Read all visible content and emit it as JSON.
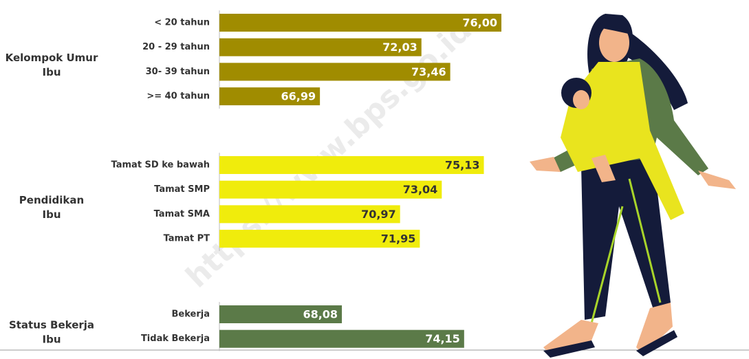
{
  "chart_data": {
    "type": "bar",
    "orientation": "horizontal",
    "watermark": "https://www.bps.go.id",
    "xlim": [
      62,
      76
    ],
    "groups": [
      {
        "name": "Kelompok Umur Ibu",
        "color": "#a08c00",
        "categories": [
          "< 20 tahun",
          "20 - 29 tahun",
          "30- 39 tahun",
          ">= 40 tahun"
        ],
        "values": [
          76.0,
          72.03,
          73.46,
          66.99
        ],
        "value_labels": [
          "76,00",
          "72,03",
          "73,46",
          "66,99"
        ]
      },
      {
        "name": "Pendidikan Ibu",
        "color": "#f0ec0c",
        "categories": [
          "Tamat SD ke bawah",
          "Tamat SMP",
          "Tamat SMA",
          "Tamat PT"
        ],
        "values": [
          75.13,
          73.04,
          70.97,
          71.95
        ],
        "value_labels": [
          "75,13",
          "73,04",
          "70,97",
          "71,95"
        ]
      },
      {
        "name": "Status Bekerja Ibu",
        "color": "#5b7a48",
        "categories": [
          "Bekerja",
          "Tidak Bekerja"
        ],
        "values": [
          68.08,
          74.15
        ],
        "value_labels": [
          "68,08",
          "74,15"
        ]
      }
    ]
  }
}
